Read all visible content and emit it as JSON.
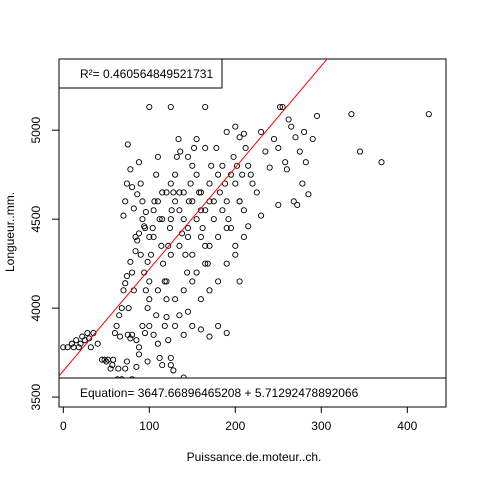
{
  "chart_data": {
    "type": "scatter",
    "xlabel": "Puissance.de.moteur..ch.",
    "ylabel": "Longueur..mm.",
    "xlim": [
      -5,
      445
    ],
    "ylim": [
      3450,
      5400
    ],
    "x_ticks": [
      0,
      100,
      200,
      300,
      400
    ],
    "y_ticks": [
      3500,
      4000,
      4500,
      5000
    ],
    "grid": false,
    "regression": {
      "intercept": 3647.66896465208,
      "slope": 5.71292478892066,
      "color": "#ff0000",
      "r2_label": "R²= 0.460564849521731",
      "equation_label": "Equation= 3647.66896465208 + 5.71292478892066"
    },
    "series": [
      {
        "marker": "open-circle",
        "points": [
          [
            0,
            3780
          ],
          [
            5,
            3780
          ],
          [
            10,
            3800
          ],
          [
            12,
            3780
          ],
          [
            15,
            3820
          ],
          [
            18,
            3780
          ],
          [
            20,
            3800
          ],
          [
            22,
            3840
          ],
          [
            25,
            3820
          ],
          [
            28,
            3860
          ],
          [
            30,
            3830
          ],
          [
            32,
            3780
          ],
          [
            35,
            3860
          ],
          [
            40,
            3800
          ],
          [
            45,
            3710
          ],
          [
            48,
            3710
          ],
          [
            50,
            3700
          ],
          [
            52,
            3710
          ],
          [
            55,
            3660
          ],
          [
            57,
            3680
          ],
          [
            58,
            3710
          ],
          [
            60,
            3520
          ],
          [
            62,
            3540
          ],
          [
            63,
            3600
          ],
          [
            64,
            3660
          ],
          [
            65,
            3520
          ],
          [
            66,
            3840
          ],
          [
            68,
            3600
          ],
          [
            70,
            3560
          ],
          [
            72,
            3660
          ],
          [
            74,
            3700
          ],
          [
            75,
            3520
          ],
          [
            78,
            3580
          ],
          [
            80,
            3600
          ],
          [
            60,
            3860
          ],
          [
            62,
            3900
          ],
          [
            65,
            3960
          ],
          [
            68,
            4000
          ],
          [
            70,
            4100
          ],
          [
            72,
            4140
          ],
          [
            74,
            4180
          ],
          [
            76,
            4000
          ],
          [
            78,
            4260
          ],
          [
            80,
            4200
          ],
          [
            82,
            4100
          ],
          [
            84,
            4320
          ],
          [
            86,
            4380
          ],
          [
            88,
            4420
          ],
          [
            90,
            4300
          ],
          [
            92,
            4500
          ],
          [
            94,
            4460
          ],
          [
            96,
            4540
          ],
          [
            98,
            4260
          ],
          [
            100,
            4400
          ],
          [
            70,
            4520
          ],
          [
            72,
            4600
          ],
          [
            74,
            4700
          ],
          [
            75,
            4920
          ],
          [
            78,
            4780
          ],
          [
            80,
            4680
          ],
          [
            82,
            4560
          ],
          [
            84,
            4400
          ],
          [
            86,
            4640
          ],
          [
            88,
            4820
          ],
          [
            90,
            4700
          ],
          [
            92,
            4600
          ],
          [
            94,
            4200
          ],
          [
            96,
            4100
          ],
          [
            98,
            4000
          ],
          [
            100,
            4150
          ],
          [
            102,
            4300
          ],
          [
            104,
            4450
          ],
          [
            106,
            4600
          ],
          [
            108,
            4750
          ],
          [
            110,
            4850
          ],
          [
            112,
            4500
          ],
          [
            114,
            4350
          ],
          [
            116,
            4250
          ],
          [
            118,
            4150
          ],
          [
            120,
            4050
          ],
          [
            122,
            4350
          ],
          [
            124,
            4450
          ],
          [
            126,
            4550
          ],
          [
            128,
            4650
          ],
          [
            130,
            4750
          ],
          [
            132,
            4850
          ],
          [
            134,
            4950
          ],
          [
            136,
            4880
          ],
          [
            138,
            4420
          ],
          [
            140,
            4500
          ],
          [
            142,
            4300
          ],
          [
            144,
            4200
          ],
          [
            146,
            4600
          ],
          [
            148,
            4700
          ],
          [
            150,
            4800
          ],
          [
            152,
            4900
          ],
          [
            155,
            4750
          ],
          [
            158,
            4650
          ],
          [
            160,
            4550
          ],
          [
            162,
            4450
          ],
          [
            165,
            4350
          ],
          [
            168,
            4250
          ],
          [
            170,
            4700
          ],
          [
            172,
            4800
          ],
          [
            175,
            4600
          ],
          [
            178,
            4900
          ],
          [
            180,
            4750
          ],
          [
            182,
            4650
          ],
          [
            185,
            4800
          ],
          [
            188,
            4700
          ],
          [
            190,
            4600
          ],
          [
            192,
            4500
          ],
          [
            195,
            4750
          ],
          [
            198,
            4850
          ],
          [
            200,
            4700
          ],
          [
            202,
            4800
          ],
          [
            205,
            4600
          ],
          [
            208,
            4750
          ],
          [
            210,
            4550
          ],
          [
            212,
            4900
          ],
          [
            215,
            4800
          ],
          [
            218,
            4750
          ],
          [
            220,
            4700
          ],
          [
            225,
            4650
          ],
          [
            80,
            3850
          ],
          [
            85,
            3820
          ],
          [
            88,
            3780
          ],
          [
            92,
            3900
          ],
          [
            95,
            3860
          ],
          [
            98,
            3700
          ],
          [
            100,
            3900
          ],
          [
            105,
            3850
          ],
          [
            108,
            3960
          ],
          [
            110,
            3800
          ],
          [
            112,
            3720
          ],
          [
            115,
            3680
          ],
          [
            118,
            3900
          ],
          [
            120,
            3950
          ],
          [
            122,
            3820
          ],
          [
            125,
            3680
          ],
          [
            130,
            3900
          ],
          [
            135,
            3960
          ],
          [
            140,
            3850
          ],
          [
            145,
            3980
          ],
          [
            150,
            3900
          ],
          [
            160,
            3880
          ],
          [
            170,
            3840
          ],
          [
            180,
            3900
          ],
          [
            190,
            3860
          ],
          [
            100,
            4050
          ],
          [
            110,
            4100
          ],
          [
            120,
            4150
          ],
          [
            130,
            4050
          ],
          [
            140,
            4100
          ],
          [
            150,
            4150
          ],
          [
            160,
            4050
          ],
          [
            170,
            4100
          ],
          [
            180,
            4150
          ],
          [
            190,
            4250
          ],
          [
            200,
            4300
          ],
          [
            205,
            4150
          ],
          [
            150,
            4300
          ],
          [
            160,
            4400
          ],
          [
            170,
            4350
          ],
          [
            180,
            4400
          ],
          [
            190,
            4450
          ],
          [
            200,
            4350
          ],
          [
            210,
            4400
          ],
          [
            125,
            4500
          ],
          [
            135,
            4550
          ],
          [
            145,
            4450
          ],
          [
            155,
            4500
          ],
          [
            165,
            4550
          ],
          [
            175,
            4500
          ],
          [
            185,
            4550
          ],
          [
            195,
            4450
          ],
          [
            110,
            4600
          ],
          [
            120,
            4650
          ],
          [
            130,
            4600
          ],
          [
            140,
            4650
          ],
          [
            150,
            4600
          ],
          [
            160,
            4650
          ],
          [
            170,
            4600
          ],
          [
            95,
            4450
          ],
          [
            105,
            4400
          ],
          [
            115,
            4500
          ],
          [
            125,
            4300
          ],
          [
            135,
            4350
          ],
          [
            145,
            4400
          ],
          [
            155,
            4200
          ],
          [
            165,
            4250
          ],
          [
            105,
            4550
          ],
          [
            115,
            4650
          ],
          [
            125,
            4700
          ],
          [
            135,
            4650
          ],
          [
            145,
            4850
          ],
          [
            155,
            4950
          ],
          [
            165,
            4900
          ],
          [
            100,
            5130
          ],
          [
            125,
            5130
          ],
          [
            165,
            5130
          ],
          [
            190,
            4990
          ],
          [
            200,
            5020
          ],
          [
            205,
            4960
          ],
          [
            210,
            4980
          ],
          [
            230,
            4990
          ],
          [
            235,
            4880
          ],
          [
            240,
            4790
          ],
          [
            245,
            4950
          ],
          [
            250,
            4900
          ],
          [
            252,
            5130
          ],
          [
            255,
            5130
          ],
          [
            258,
            4820
          ],
          [
            260,
            4780
          ],
          [
            262,
            5060
          ],
          [
            265,
            5020
          ],
          [
            270,
            4960
          ],
          [
            272,
            4580
          ],
          [
            275,
            4880
          ],
          [
            278,
            4700
          ],
          [
            280,
            4990
          ],
          [
            282,
            4820
          ],
          [
            285,
            4640
          ],
          [
            290,
            4950
          ],
          [
            295,
            5080
          ],
          [
            335,
            5090
          ],
          [
            345,
            4880
          ],
          [
            370,
            4820
          ],
          [
            425,
            5090
          ],
          [
            250,
            4580
          ],
          [
            268,
            4600
          ],
          [
            230,
            4520
          ],
          [
            215,
            4460
          ],
          [
            205,
            4600
          ],
          [
            125,
            3720
          ],
          [
            128,
            3650
          ],
          [
            140,
            3610
          ],
          [
            102,
            3580
          ],
          [
            98,
            3560
          ],
          [
            75,
            3850
          ],
          [
            78,
            3830
          ],
          [
            88,
            3740
          ],
          [
            92,
            3590
          ],
          [
            85,
            3670
          ]
        ]
      }
    ]
  }
}
